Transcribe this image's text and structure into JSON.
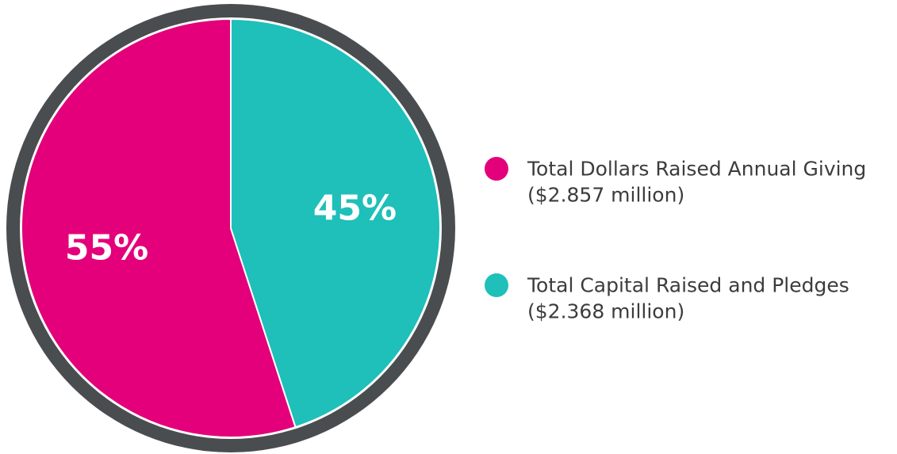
{
  "chart_data": {
    "type": "pie",
    "categories": [
      "Total Dollars Raised Annual Giving",
      "Total Capital Raised and Pledges"
    ],
    "category_notes": [
      "($2.857 million)",
      "($2.368 million)"
    ],
    "values": [
      55,
      45
    ],
    "value_labels": [
      "55%",
      "45%"
    ],
    "colors": [
      "#e3007a",
      "#1fbfba"
    ],
    "legend": "right"
  }
}
